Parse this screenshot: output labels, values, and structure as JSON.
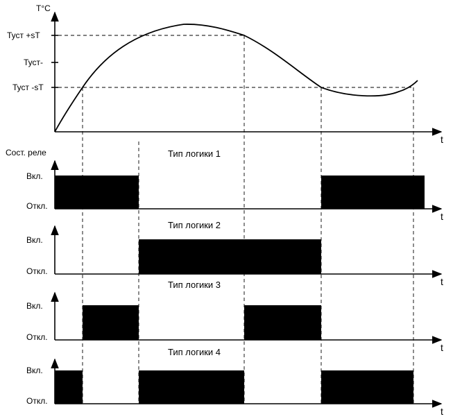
{
  "temperature_chart": {
    "y_axis_label": "T°C",
    "x_axis_label": "t",
    "levels": [
      {
        "label": "Туст +sT"
      },
      {
        "label": "Туст-"
      },
      {
        "label": "Туст -sT"
      }
    ]
  },
  "relay": {
    "state_label": "Сост. реле",
    "on_label": "Вкл.",
    "off_label": "Откл.",
    "x_axis_label": "t"
  },
  "logic_types": [
    {
      "title": "Тип логики 1"
    },
    {
      "title": "Тип логики 2"
    },
    {
      "title": "Тип логики 3"
    },
    {
      "title": "Тип логики 4"
    }
  ],
  "colors": {
    "line": "#000000",
    "background": "#ffffff"
  }
}
